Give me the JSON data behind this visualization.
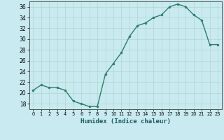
{
  "x": [
    0,
    1,
    2,
    3,
    4,
    5,
    6,
    7,
    8,
    9,
    10,
    11,
    12,
    13,
    14,
    15,
    16,
    17,
    18,
    19,
    20,
    21,
    22,
    23
  ],
  "y": [
    20.5,
    21.5,
    21.0,
    21.0,
    20.5,
    18.5,
    18.0,
    17.5,
    17.5,
    23.5,
    25.5,
    27.5,
    30.5,
    32.5,
    33.0,
    34.0,
    34.5,
    36.0,
    36.5,
    36.0,
    34.5,
    33.5,
    29.0,
    29.0
  ],
  "xlim": [
    -0.5,
    23.5
  ],
  "ylim": [
    17,
    37
  ],
  "yticks": [
    18,
    20,
    22,
    24,
    26,
    28,
    30,
    32,
    34,
    36
  ],
  "xtick_labels": [
    "0",
    "1",
    "2",
    "3",
    "4",
    "5",
    "6",
    "7",
    "8",
    "9",
    "10",
    "11",
    "12",
    "13",
    "14",
    "15",
    "16",
    "17",
    "18",
    "19",
    "20",
    "21",
    "22",
    "23"
  ],
  "xlabel": "Humidex (Indice chaleur)",
  "line_color": "#2e7d6e",
  "marker": "o",
  "marker_size": 2.0,
  "bg_color": "#c8eaf0",
  "grid_color": "#b0d8cc",
  "title": ""
}
